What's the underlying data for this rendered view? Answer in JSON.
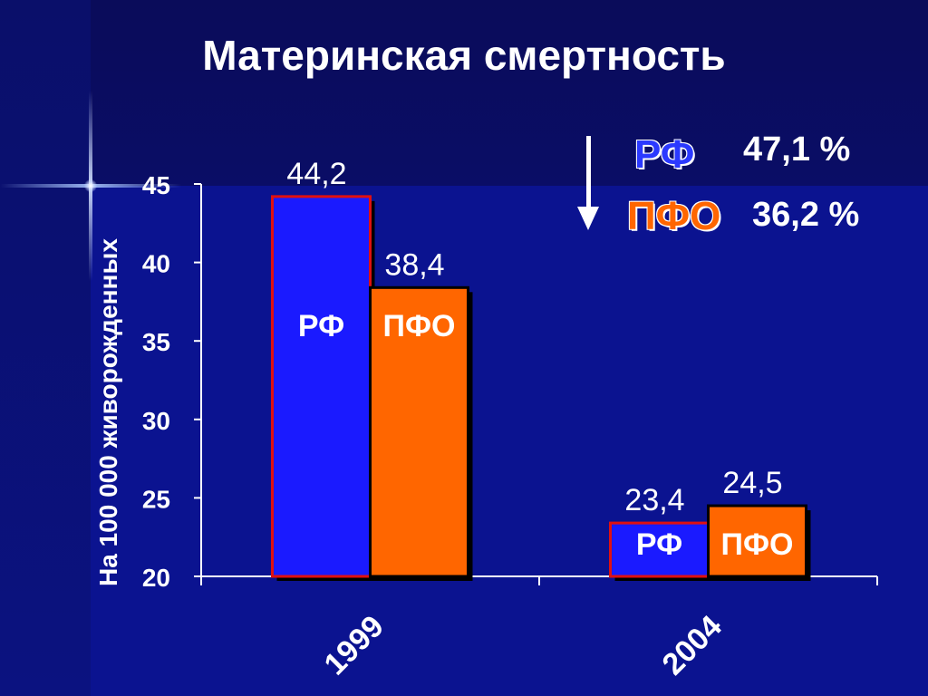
{
  "title": "Материнская смертность",
  "colors": {
    "rf": "#1a1aff",
    "pfo": "#ff6600",
    "rf_border": "#e01010",
    "pfo_border": "#000000"
  },
  "legend": {
    "rf_label": "РФ",
    "rf_value": "47,1 %",
    "pfo_label": "ПФО",
    "pfo_value": "36,2 %",
    "arrow_icon": "down-arrow-icon"
  },
  "chart_data": {
    "type": "bar",
    "title": "Материнская смертность",
    "xlabel": "",
    "ylabel": "На 100 000 живорожденных",
    "categories": [
      "1999",
      "2004"
    ],
    "ylim": [
      20,
      45
    ],
    "yticks": [
      "20",
      "25",
      "30",
      "35",
      "40",
      "45"
    ],
    "series": [
      {
        "name": "РФ",
        "values": [
          44.2,
          23.4
        ],
        "labels": [
          "44,2",
          "23,4"
        ]
      },
      {
        "name": "ПФО",
        "values": [
          38.4,
          24.5
        ],
        "labels": [
          "38,4",
          "24,5"
        ]
      }
    ],
    "grid": false
  }
}
